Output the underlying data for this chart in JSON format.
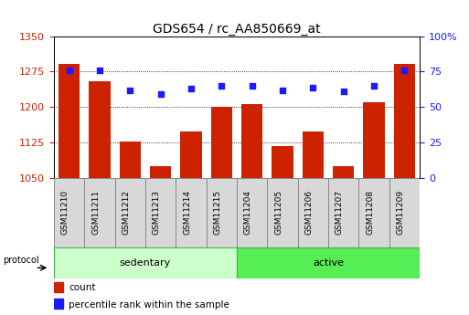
{
  "title": "GDS654 / rc_AA850669_at",
  "samples": [
    "GSM11210",
    "GSM11211",
    "GSM11212",
    "GSM11213",
    "GSM11214",
    "GSM11215",
    "GSM11204",
    "GSM11205",
    "GSM11206",
    "GSM11207",
    "GSM11208",
    "GSM11209"
  ],
  "groups": [
    "sedentary",
    "sedentary",
    "sedentary",
    "sedentary",
    "sedentary",
    "sedentary",
    "active",
    "active",
    "active",
    "active",
    "active",
    "active"
  ],
  "count_values": [
    1292,
    1255,
    1128,
    1075,
    1148,
    1200,
    1207,
    1118,
    1148,
    1075,
    1210,
    1292
  ],
  "percentile_values": [
    76,
    76,
    62,
    59,
    63,
    65,
    65,
    62,
    64,
    61,
    65,
    76
  ],
  "ylim_left": [
    1050,
    1350
  ],
  "ylim_right": [
    0,
    100
  ],
  "yticks_left": [
    1050,
    1125,
    1200,
    1275,
    1350
  ],
  "yticks_right": [
    0,
    25,
    50,
    75,
    100
  ],
  "bar_color": "#cc2200",
  "dot_color": "#1a1aff",
  "sedentary_color": "#ccffcc",
  "active_color": "#55ee55",
  "label_bg_color": "#d8d8d8",
  "grid_color": "#000000",
  "bg_color": "#ffffff",
  "title_fontsize": 10,
  "label_fontsize": 8,
  "tick_fontsize": 8,
  "sample_fontsize": 6.5
}
